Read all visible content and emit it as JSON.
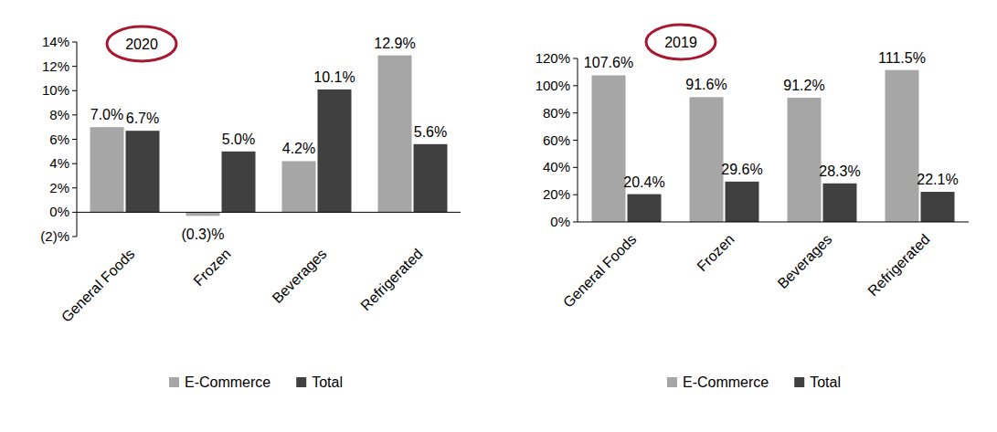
{
  "chart_data": [
    {
      "type": "bar",
      "title": "2020",
      "categories": [
        "General Foods",
        "Frozen",
        "Beverages",
        "Refrigerated"
      ],
      "series": [
        {
          "name": "E-Commerce",
          "color": "#a6a6a6",
          "values": [
            7.0,
            -0.3,
            4.2,
            12.9
          ],
          "value_labels": [
            "7.0%",
            "(0.3)%",
            "4.2%",
            "12.9%"
          ]
        },
        {
          "name": "Total",
          "color": "#404040",
          "values": [
            6.7,
            5.0,
            10.1,
            5.6
          ],
          "value_labels": [
            "6.7%",
            "5.0%",
            "10.1%",
            "5.6%"
          ]
        }
      ],
      "ylim": [
        -2,
        14
      ],
      "yticks": [
        {
          "value": -2,
          "label": "(2)%"
        },
        {
          "value": 0,
          "label": "0%"
        },
        {
          "value": 2,
          "label": "2%"
        },
        {
          "value": 4,
          "label": "4%"
        },
        {
          "value": 6,
          "label": "6%"
        },
        {
          "value": 8,
          "label": "8%"
        },
        {
          "value": 10,
          "label": "10%"
        },
        {
          "value": 12,
          "label": "12%"
        },
        {
          "value": 14,
          "label": "14%"
        }
      ],
      "grid": false,
      "legend": "bottom",
      "data_labels": true
    },
    {
      "type": "bar",
      "title": "2019",
      "categories": [
        "General Foods",
        "Frozen",
        "Beverages",
        "Refrigerated"
      ],
      "series": [
        {
          "name": "E-Commerce",
          "color": "#a6a6a6",
          "values": [
            107.6,
            91.6,
            91.2,
            111.5
          ],
          "value_labels": [
            "107.6%",
            "91.6%",
            "91.2%",
            "111.5%"
          ]
        },
        {
          "name": "Total",
          "color": "#404040",
          "values": [
            20.4,
            29.6,
            28.3,
            22.1
          ],
          "value_labels": [
            "20.4%",
            "29.6%",
            "28.3%",
            "22.1%"
          ]
        }
      ],
      "ylim": [
        0,
        120
      ],
      "yticks": [
        {
          "value": 0,
          "label": "0%"
        },
        {
          "value": 20,
          "label": "20%"
        },
        {
          "value": 40,
          "label": "40%"
        },
        {
          "value": 60,
          "label": "60%"
        },
        {
          "value": 80,
          "label": "80%"
        },
        {
          "value": 100,
          "label": "100%"
        },
        {
          "value": 120,
          "label": "120%"
        }
      ],
      "grid": false,
      "legend": "bottom",
      "data_labels": true
    }
  ]
}
